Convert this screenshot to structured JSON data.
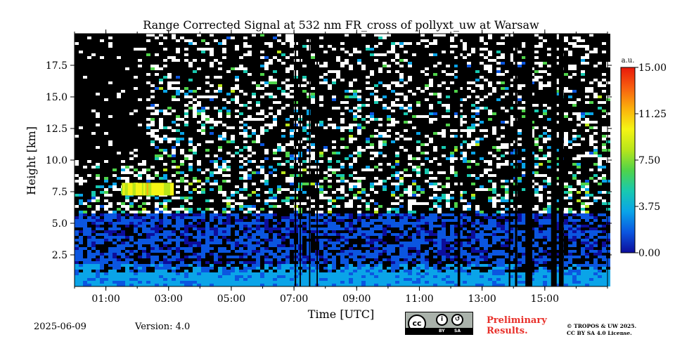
{
  "chart_data": {
    "type": "heatmap",
    "title": "Range Corrected Signal at 532 nm FR_cross of pollyxt_uw at Warsaw",
    "xlabel": "Time [UTC]",
    "ylabel": "Height [km]",
    "x_range_hours": [
      0,
      17
    ],
    "ylim": [
      0,
      20
    ],
    "x_ticks": [
      {
        "value": 1,
        "label": "01:00"
      },
      {
        "value": 3,
        "label": "03:00"
      },
      {
        "value": 5,
        "label": "05:00"
      },
      {
        "value": 7,
        "label": "07:00"
      },
      {
        "value": 9,
        "label": "09:00"
      },
      {
        "value": 11,
        "label": "11:00"
      },
      {
        "value": 13,
        "label": "13:00"
      },
      {
        "value": 15,
        "label": "15:00"
      }
    ],
    "y_ticks": [
      {
        "value": 2.5,
        "label": "2.5"
      },
      {
        "value": 5.0,
        "label": "5.0"
      },
      {
        "value": 7.5,
        "label": "7.5"
      },
      {
        "value": 10.0,
        "label": "10.0"
      },
      {
        "value": 12.5,
        "label": "12.5"
      },
      {
        "value": 15.0,
        "label": "15.0"
      },
      {
        "value": 17.5,
        "label": "17.5"
      }
    ],
    "colorbar": {
      "unit": "a.u.",
      "range": [
        0,
        15
      ],
      "ticks": [
        {
          "value": 0,
          "label": "0.00"
        },
        {
          "value": 3.75,
          "label": "3.75"
        },
        {
          "value": 7.5,
          "label": "7.50"
        },
        {
          "value": 11.25,
          "label": "11.25"
        },
        {
          "value": 15,
          "label": "15.00"
        }
      ],
      "colormap": [
        "#0d0d9b",
        "#0b56e0",
        "#0aa4e8",
        "#18c9b0",
        "#4fd34a",
        "#b8e51b",
        "#f5f514",
        "#fbb00c",
        "#f86010",
        "#e8190a"
      ]
    },
    "no_data_periods_utc_hours": [
      [
        7.02,
        7.07
      ],
      [
        7.18,
        7.22
      ],
      [
        7.48,
        7.52
      ],
      [
        7.72,
        7.76
      ],
      [
        12.22,
        12.3
      ],
      [
        13.85,
        13.9
      ],
      [
        14.05,
        14.12
      ],
      [
        14.38,
        14.6
      ],
      [
        15.2,
        15.38
      ],
      [
        15.45,
        15.6
      ]
    ]
  },
  "footer": {
    "date": "2025-06-09",
    "version": "Version: 4.0",
    "preliminary": [
      "Preliminary",
      "Results."
    ],
    "copyright": [
      "© TROPOS & UW 2025.",
      "CC BY SA 4.0 License."
    ],
    "license_badge": {
      "icon": "cc-by-sa-icon",
      "by_label": "BY",
      "sa_label": "SA",
      "cc_label": "cc"
    }
  }
}
